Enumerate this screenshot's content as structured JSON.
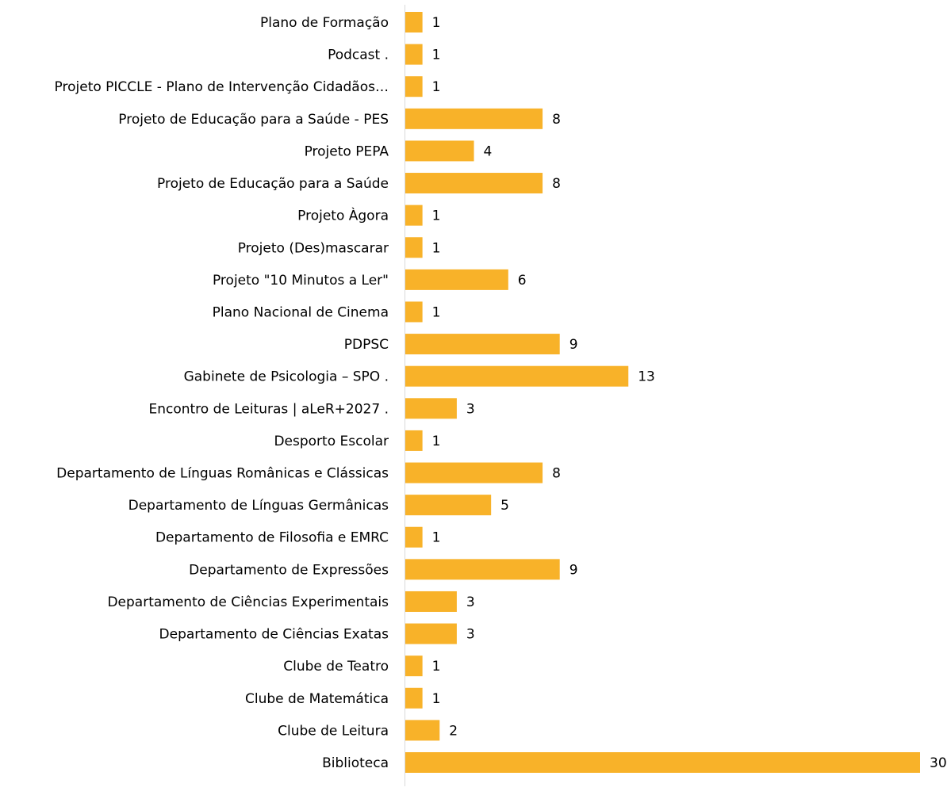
{
  "chart_data": {
    "type": "bar",
    "orientation": "horizontal",
    "color": "#f8b229",
    "categories": [
      "Plano de Formação",
      "Podcast .",
      "Projeto PICCLE - Plano de Intervenção Cidadãos…",
      "Projeto de Educação para a Saúde - PES",
      "Projeto PEPA",
      "Projeto de Educação para a Saúde",
      "Projeto Àgora",
      "Projeto (Des)mascarar",
      "Projeto \"10 Minutos a Ler\"",
      "Plano Nacional de Cinema",
      "PDPSC",
      "Gabinete de Psicologia – SPO .",
      "Encontro de Leituras | aLeR+2027 .",
      "Desporto Escolar",
      "Departamento de Línguas Românicas e Clássicas",
      "Departamento de Línguas Germânicas",
      "Departamento de Filosofia e EMRC",
      "Departamento de Expressões",
      "Departamento de Ciências Experimentais",
      "Departamento de Ciências Exatas",
      "Clube de Teatro",
      "Clube de Matemática",
      "Clube de Leitura",
      "Biblioteca"
    ],
    "values": [
      1,
      1,
      1,
      8,
      4,
      8,
      1,
      1,
      6,
      1,
      9,
      13,
      3,
      1,
      8,
      5,
      1,
      9,
      3,
      3,
      1,
      1,
      2,
      30
    ]
  }
}
